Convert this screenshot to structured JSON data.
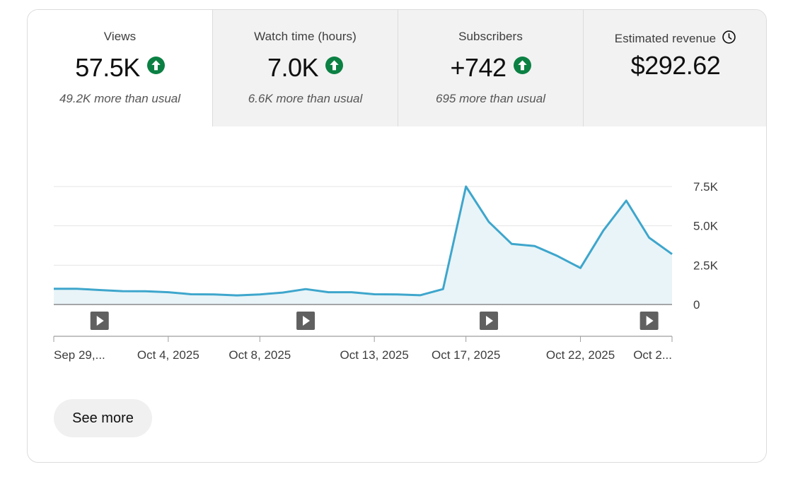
{
  "metrics": [
    {
      "label": "Views",
      "value": "57.5K",
      "trend": "up",
      "note": "49.2K more than usual",
      "selected": true
    },
    {
      "label": "Watch time (hours)",
      "value": "7.0K",
      "trend": "up",
      "note": "6.6K more than usual",
      "selected": false
    },
    {
      "label": "Subscribers",
      "value": "+742",
      "trend": "up",
      "note": "695 more than usual",
      "selected": false
    },
    {
      "label": "Estimated revenue",
      "value": "$292.62",
      "trend": "",
      "note": "",
      "selected": false,
      "icon": "clock-icon"
    }
  ],
  "icons": {
    "trend_up": "arrow-up-circle-icon",
    "video_marker": "play-icon",
    "revenue_info": "clock-icon"
  },
  "colors": {
    "line": "#3ea6cc",
    "fill": "#e9f4f8",
    "trend_up": "#0b8043",
    "grid": "#e5e5e5",
    "axis": "#9e9e9e",
    "marker": "#606060"
  },
  "see_more_label": "See more",
  "chart_data": {
    "type": "area",
    "title": "",
    "xlabel": "",
    "ylabel": "",
    "x": [
      "2025-09-29",
      "2025-09-30",
      "2025-10-01",
      "2025-10-02",
      "2025-10-03",
      "2025-10-04",
      "2025-10-05",
      "2025-10-06",
      "2025-10-07",
      "2025-10-08",
      "2025-10-09",
      "2025-10-10",
      "2025-10-11",
      "2025-10-12",
      "2025-10-13",
      "2025-10-14",
      "2025-10-15",
      "2025-10-16",
      "2025-10-17",
      "2025-10-18",
      "2025-10-19",
      "2025-10-20",
      "2025-10-21",
      "2025-10-22",
      "2025-10-23",
      "2025-10-24",
      "2025-10-25",
      "2025-10-26"
    ],
    "series": [
      {
        "values": [
          1000,
          1000,
          920,
          850,
          840,
          780,
          650,
          640,
          580,
          640,
          760,
          980,
          780,
          780,
          650,
          640,
          590,
          980,
          7500,
          5250,
          3850,
          3720,
          3080,
          2320,
          4700,
          6600,
          4250,
          3200
        ]
      }
    ],
    "ylim": [
      0,
      7500
    ],
    "y_ticks": [
      {
        "value": 0,
        "label": "0"
      },
      {
        "value": 2500,
        "label": "2.5K"
      },
      {
        "value": 5000,
        "label": "5.0K"
      },
      {
        "value": 7500,
        "label": "7.5K"
      }
    ],
    "x_tick_labels": [
      {
        "date": "2025-09-29",
        "label": "Sep 29,..."
      },
      {
        "date": "2025-10-04",
        "label": "Oct 4, 2025"
      },
      {
        "date": "2025-10-08",
        "label": "Oct 8, 2025"
      },
      {
        "date": "2025-10-13",
        "label": "Oct 13, 2025"
      },
      {
        "date": "2025-10-17",
        "label": "Oct 17, 2025"
      },
      {
        "date": "2025-10-22",
        "label": "Oct 22, 2025"
      },
      {
        "date": "2025-10-26",
        "label": "Oct 2..."
      }
    ],
    "video_markers": [
      "2025-10-01",
      "2025-10-10",
      "2025-10-18",
      "2025-10-25"
    ],
    "grid": true,
    "y_axis_side": "right",
    "legend": "none"
  }
}
